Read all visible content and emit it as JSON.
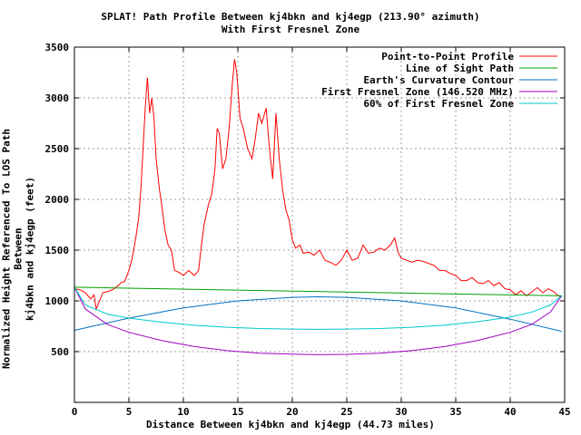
{
  "chart_data": {
    "type": "line",
    "title": "SPLAT! Path Profile Between kj4bkn and kj4egp (213.90° azimuth)",
    "subtitle": "With First Fresnel Zone",
    "xlabel": "Distance Between kj4bkn and kj4egp (44.73 miles)",
    "ylabel_line1": "Normalized Height Referenced To LOS Path Between",
    "ylabel_line2": "kj4bkn and kj4egp (feet)",
    "xlim": [
      0,
      45
    ],
    "ylim": [
      0,
      3500
    ],
    "grid": true,
    "legend_position": "top-right",
    "x_ticks": [
      0,
      5,
      10,
      15,
      20,
      25,
      30,
      35,
      40,
      45
    ],
    "y_ticks": [
      500,
      1000,
      1500,
      2000,
      2500,
      3000,
      3500
    ],
    "series": [
      {
        "name": "Point-to-Point Profile",
        "color": "#ff0000",
        "points": [
          [
            0,
            1120
          ],
          [
            0.5,
            1110
          ],
          [
            1,
            1080
          ],
          [
            1.5,
            1020
          ],
          [
            1.8,
            1060
          ],
          [
            2,
            920
          ],
          [
            2.3,
            1000
          ],
          [
            2.6,
            1080
          ],
          [
            3,
            1090
          ],
          [
            3.5,
            1110
          ],
          [
            4,
            1150
          ],
          [
            4.3,
            1180
          ],
          [
            4.6,
            1190
          ],
          [
            5,
            1300
          ],
          [
            5.3,
            1420
          ],
          [
            5.6,
            1600
          ],
          [
            5.9,
            1820
          ],
          [
            6.1,
            2100
          ],
          [
            6.3,
            2500
          ],
          [
            6.5,
            2900
          ],
          [
            6.7,
            3200
          ],
          [
            6.9,
            2850
          ],
          [
            7.1,
            3000
          ],
          [
            7.3,
            2800
          ],
          [
            7.5,
            2400
          ],
          [
            7.8,
            2100
          ],
          [
            8.0,
            1950
          ],
          [
            8.3,
            1700
          ],
          [
            8.6,
            1550
          ],
          [
            8.9,
            1500
          ],
          [
            9.2,
            1300
          ],
          [
            9.6,
            1280
          ],
          [
            10,
            1250
          ],
          [
            10.5,
            1300
          ],
          [
            11,
            1250
          ],
          [
            11.4,
            1300
          ],
          [
            11.6,
            1500
          ],
          [
            11.9,
            1750
          ],
          [
            12.3,
            1950
          ],
          [
            12.6,
            2050
          ],
          [
            12.9,
            2300
          ],
          [
            13.1,
            2700
          ],
          [
            13.3,
            2650
          ],
          [
            13.6,
            2300
          ],
          [
            13.9,
            2400
          ],
          [
            14.2,
            2700
          ],
          [
            14.5,
            3150
          ],
          [
            14.7,
            3380
          ],
          [
            14.9,
            3250
          ],
          [
            15.2,
            2800
          ],
          [
            15.5,
            2700
          ],
          [
            15.9,
            2500
          ],
          [
            16.3,
            2400
          ],
          [
            16.6,
            2600
          ],
          [
            16.9,
            2850
          ],
          [
            17.2,
            2750
          ],
          [
            17.6,
            2900
          ],
          [
            17.9,
            2500
          ],
          [
            18.2,
            2200
          ],
          [
            18.5,
            2850
          ],
          [
            18.8,
            2400
          ],
          [
            19.1,
            2100
          ],
          [
            19.4,
            1900
          ],
          [
            19.7,
            1800
          ],
          [
            20.0,
            1600
          ],
          [
            20.3,
            1520
          ],
          [
            20.7,
            1550
          ],
          [
            21.0,
            1470
          ],
          [
            21.5,
            1480
          ],
          [
            22.0,
            1450
          ],
          [
            22.5,
            1500
          ],
          [
            23,
            1400
          ],
          [
            23.5,
            1380
          ],
          [
            24,
            1350
          ],
          [
            24.5,
            1400
          ],
          [
            25,
            1500
          ],
          [
            25.5,
            1400
          ],
          [
            26,
            1420
          ],
          [
            26.5,
            1550
          ],
          [
            27,
            1470
          ],
          [
            27.5,
            1480
          ],
          [
            28,
            1520
          ],
          [
            28.5,
            1500
          ],
          [
            29,
            1550
          ],
          [
            29.4,
            1620
          ],
          [
            29.7,
            1480
          ],
          [
            30,
            1420
          ],
          [
            30.5,
            1400
          ],
          [
            31,
            1380
          ],
          [
            31.5,
            1400
          ],
          [
            32,
            1390
          ],
          [
            32.5,
            1370
          ],
          [
            33,
            1350
          ],
          [
            33.5,
            1300
          ],
          [
            34,
            1300
          ],
          [
            34.5,
            1270
          ],
          [
            35,
            1250
          ],
          [
            35.5,
            1200
          ],
          [
            36,
            1200
          ],
          [
            36.5,
            1230
          ],
          [
            37,
            1180
          ],
          [
            37.5,
            1170
          ],
          [
            38,
            1200
          ],
          [
            38.5,
            1150
          ],
          [
            39,
            1180
          ],
          [
            39.5,
            1120
          ],
          [
            40,
            1110
          ],
          [
            40.5,
            1060
          ],
          [
            41,
            1100
          ],
          [
            41.5,
            1050
          ],
          [
            42,
            1090
          ],
          [
            42.5,
            1130
          ],
          [
            43,
            1080
          ],
          [
            43.5,
            1120
          ],
          [
            44,
            1090
          ],
          [
            44.4,
            1050
          ],
          [
            44.73,
            1040
          ]
        ]
      },
      {
        "name": "Line of Sight Path",
        "color": "#00a000",
        "points": [
          [
            0,
            1135
          ],
          [
            44.73,
            1050
          ]
        ]
      },
      {
        "name": "Earth's Curvature Contour",
        "color": "#0070c0",
        "points": [
          [
            0,
            710
          ],
          [
            5,
            830
          ],
          [
            10,
            930
          ],
          [
            15,
            1000
          ],
          [
            20,
            1035
          ],
          [
            22.4,
            1040
          ],
          [
            25,
            1035
          ],
          [
            30,
            1000
          ],
          [
            35,
            930
          ],
          [
            40,
            820
          ],
          [
            44.73,
            700
          ]
        ]
      },
      {
        "name": "First Fresnel Zone (146.520 MHz)",
        "color": "#a000c0",
        "points": [
          [
            0,
            1135
          ],
          [
            1,
            920
          ],
          [
            3,
            770
          ],
          [
            5,
            690
          ],
          [
            8,
            610
          ],
          [
            11,
            550
          ],
          [
            14,
            510
          ],
          [
            17,
            485
          ],
          [
            20,
            475
          ],
          [
            22.4,
            470
          ],
          [
            25,
            473
          ],
          [
            28,
            485
          ],
          [
            31,
            510
          ],
          [
            34,
            550
          ],
          [
            37,
            610
          ],
          [
            40,
            690
          ],
          [
            42,
            770
          ],
          [
            43.7,
            890
          ],
          [
            44.73,
            1050
          ]
        ]
      },
      {
        "name": "60% of First Fresnel Zone",
        "color": "#00c8c8",
        "points": [
          [
            0,
            1135
          ],
          [
            1,
            960
          ],
          [
            3,
            870
          ],
          [
            5,
            830
          ],
          [
            8,
            790
          ],
          [
            11,
            760
          ],
          [
            14,
            740
          ],
          [
            17,
            728
          ],
          [
            20,
            722
          ],
          [
            22.4,
            720
          ],
          [
            25,
            722
          ],
          [
            28,
            728
          ],
          [
            31,
            740
          ],
          [
            34,
            762
          ],
          [
            37,
            795
          ],
          [
            40,
            840
          ],
          [
            42,
            890
          ],
          [
            43.7,
            960
          ],
          [
            44.73,
            1050
          ]
        ]
      }
    ]
  }
}
